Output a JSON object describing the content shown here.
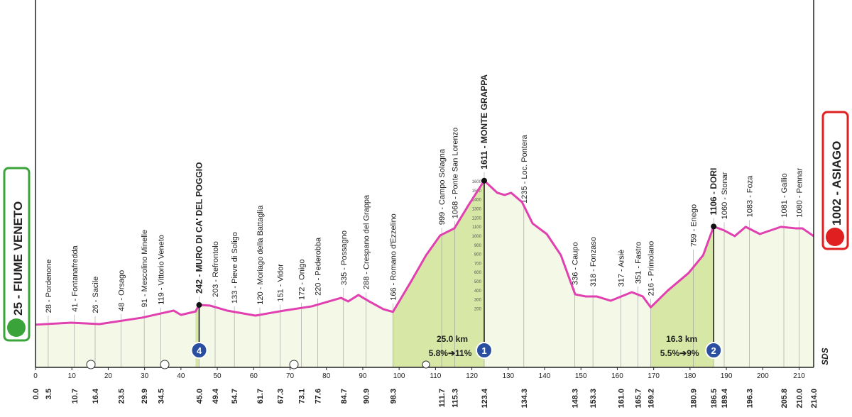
{
  "chart_data": {
    "type": "profile",
    "start": {
      "label": "25 - FIUME VENETO",
      "km": {
        "value": 0,
        "label": "0.0"
      }
    },
    "finish": {
      "label": "1002 - ASIAGO",
      "km": {
        "value": 214,
        "label": "214.0"
      }
    },
    "xlim": [
      0,
      214
    ],
    "ylim": [
      -445,
      3600
    ],
    "xticks": [
      0,
      10,
      20,
      30,
      40,
      50,
      60,
      70,
      80,
      90,
      100,
      110,
      120,
      130,
      140,
      150,
      160,
      170,
      180,
      190,
      200,
      210
    ],
    "alt_ticks": [
      200,
      300,
      400,
      500,
      600,
      700,
      800,
      900,
      1000,
      1100,
      1200,
      1300,
      1400,
      1500,
      1600
    ],
    "alt_ticks_km": 123.4,
    "profile": {
      "x": [
        0,
        9.8,
        17.6,
        29.3,
        38,
        40,
        44,
        45,
        48,
        52.7,
        60.5,
        68.3,
        76,
        84,
        86,
        88.8,
        91.8,
        95.7,
        98.3,
        103.5,
        107.4,
        111.3,
        115.2,
        119,
        123.4,
        127,
        129,
        130.8,
        133.8,
        136.7,
        140.6,
        144.5,
        148.4,
        151.3,
        154.3,
        158.2,
        161.1,
        164,
        167,
        169.2,
        173.8,
        179.6,
        183.6,
        186.5,
        189.4,
        192.3,
        195.3,
        199.2,
        205,
        209,
        210.9,
        214
      ],
      "y": [
        25,
        47,
        31,
        102,
        180,
        133,
        170,
        242,
        235,
        180,
        125,
        180,
        227,
        320,
        281,
        352,
        281,
        195,
        166,
        516,
        789,
        1008,
        1086,
        1336,
        1611,
        1477,
        1453,
        1477,
        1375,
        1140,
        1023,
        789,
        359,
        336,
        336,
        289,
        336,
        383,
        336,
        216,
        398,
        594,
        789,
        1106,
        1063,
        1000,
        1102,
        1023,
        1102,
        1086,
        1086,
        1000
      ]
    },
    "waypoints": [
      {
        "km": 3.5,
        "alt": 28,
        "label": "28 - Pordenone"
      },
      {
        "km": 10.7,
        "alt": 41,
        "label": "41 - Fontanafredda"
      },
      {
        "km": 16.4,
        "alt": 26,
        "label": "26 - Sacile"
      },
      {
        "km": 23.5,
        "alt": 48,
        "label": "48 - Orsago"
      },
      {
        "km": 29.9,
        "alt": 91,
        "label": "91 - Mescolino Minelle"
      },
      {
        "km": 34.5,
        "alt": 119,
        "label": "119 - Vittorio Veneto"
      },
      {
        "km": {
          "value": 45,
          "label": "45.0"
        },
        "alt": 242,
        "label": "242 - MURO DI CA' DEL POGGIO",
        "summit": true
      },
      {
        "km": 49.4,
        "alt": 203,
        "label": "203 - Refrontolo"
      },
      {
        "km": 54.7,
        "alt": 133,
        "label": "133 - Pieve di Soligo"
      },
      {
        "km": 61.7,
        "alt": 120,
        "label": "120 - Moriago della Battaglia"
      },
      {
        "km": 67.3,
        "alt": 151,
        "label": "151 - Vidor"
      },
      {
        "km": 73.1,
        "alt": 172,
        "label": "172 - Onigo"
      },
      {
        "km": 77.6,
        "alt": 220,
        "label": "220 - Pederobba"
      },
      {
        "km": 84.7,
        "alt": 335,
        "label": "335 - Possagno"
      },
      {
        "km": 90.9,
        "alt": 288,
        "label": "288 - Crespano del Grappa"
      },
      {
        "km": 98.3,
        "alt": 166,
        "label": "166 - Romano d'Ezzelino"
      },
      {
        "km": 111.7,
        "alt": 999,
        "label": "999 - Campo Solagna"
      },
      {
        "km": 115.3,
        "alt": 1068,
        "label": "1068 - Ponte San Lorenzo"
      },
      {
        "km": 123.4,
        "alt": 1611,
        "label": "1611 - MONTE GRAPPA",
        "summit": true
      },
      {
        "km": 134.3,
        "alt": 1235,
        "label": "1235 - Loc. Pontera"
      },
      {
        "km": 148.3,
        "alt": 336,
        "label": "336 - Caupo"
      },
      {
        "km": 153.3,
        "alt": 318,
        "label": "318 - Fonzaso"
      },
      {
        "km": {
          "value": 161,
          "label": "161.0"
        },
        "alt": 317,
        "label": "317 - Arsiè"
      },
      {
        "km": 165.7,
        "alt": 351,
        "label": "351 - Fastro"
      },
      {
        "km": 169.2,
        "alt": 216,
        "label": "216 - Primolano"
      },
      {
        "km": 180.9,
        "alt": 759,
        "label": "759 - Enego"
      },
      {
        "km": 186.5,
        "alt": 1106,
        "label": "1106 - DORI",
        "summit": true
      },
      {
        "km": 189.4,
        "alt": 1060,
        "label": "1060 - Stonar"
      },
      {
        "km": 196.3,
        "alt": 1083,
        "label": "1083 - Foza"
      },
      {
        "km": 205.8,
        "alt": 1081,
        "label": "1081 - Gallio"
      },
      {
        "km": {
          "value": 210,
          "label": "210.0"
        },
        "alt": 1080,
        "label": "1080 - Pennar"
      }
    ],
    "climbs": [
      {
        "badge": "4",
        "from": 44,
        "km": 45,
        "alt": 242
      },
      {
        "badge": "1",
        "from": 98.3,
        "km": 123.4,
        "alt": 1611,
        "length": "25.0 km",
        "grade": "5.8%➔11%"
      },
      {
        "badge": "2",
        "from": 169.2,
        "km": 186.5,
        "alt": 1106,
        "length": "16.3 km",
        "grade": "5.5%➔9%"
      }
    ],
    "logo": "SDS"
  }
}
